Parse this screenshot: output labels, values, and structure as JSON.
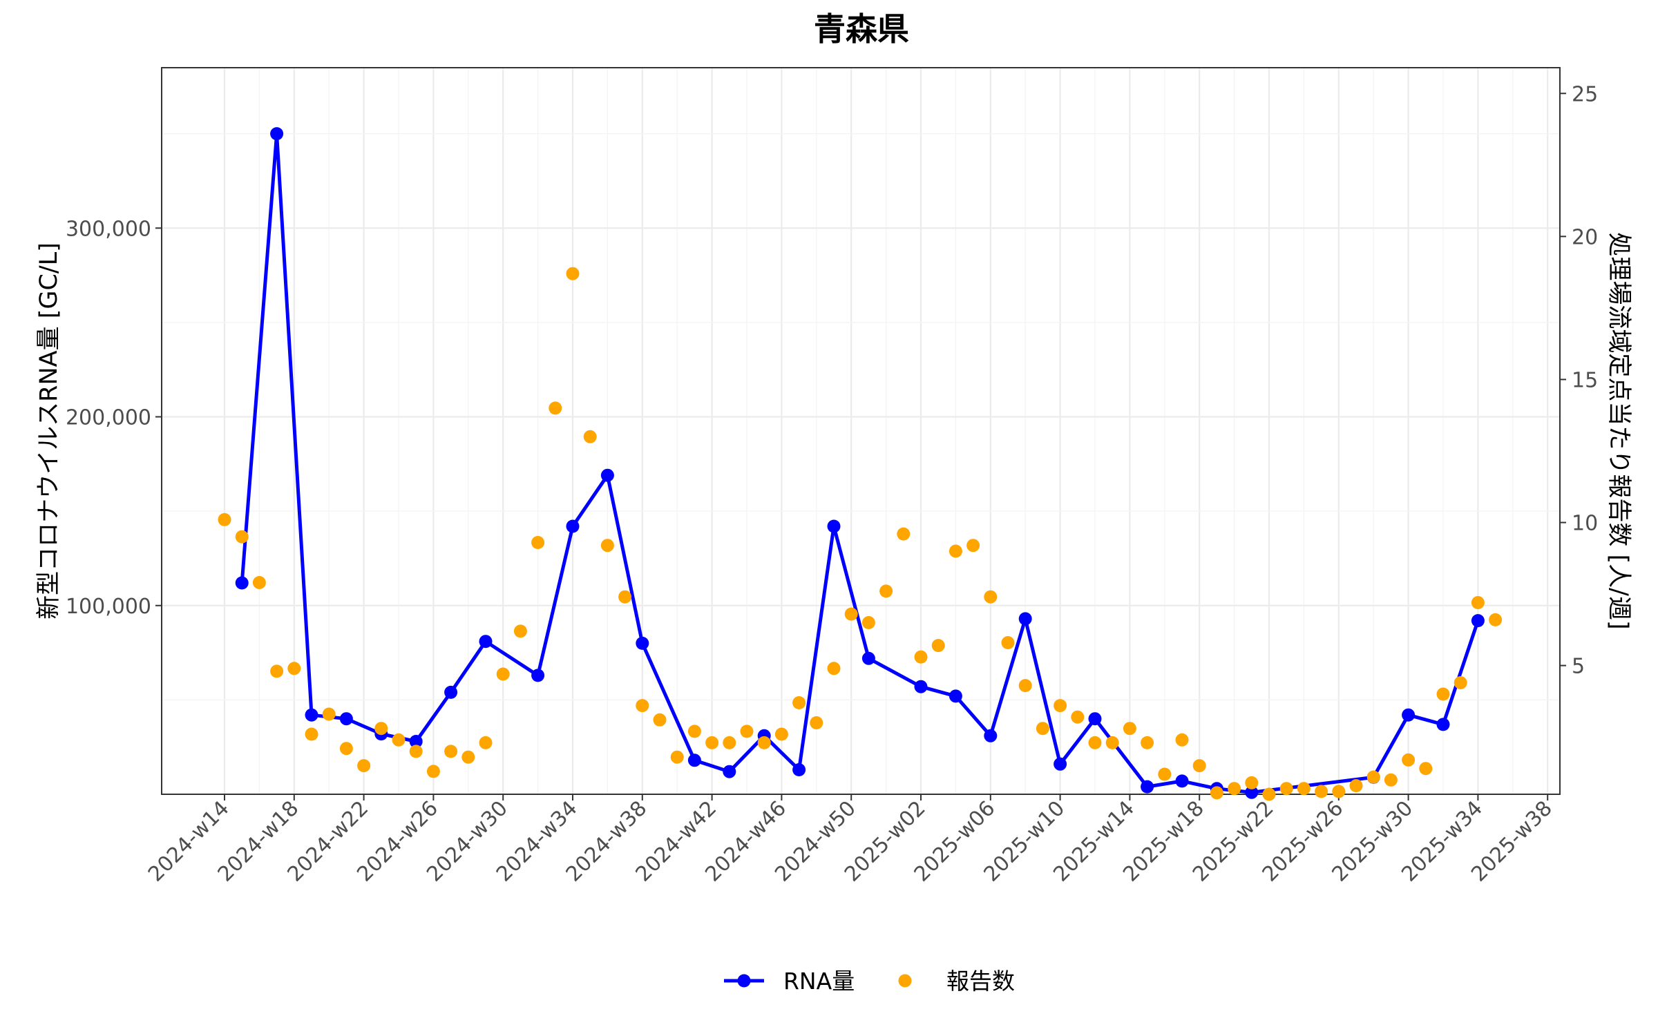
{
  "chart_data": {
    "type": "line",
    "title": "青森県",
    "xlabel": "",
    "ylabel": "新型コロナウイルスRNA量 [GC/L]",
    "y2label": "処理場流域定点当たり報告数 [人/週]",
    "x_tick_labels": [
      "2024-w14",
      "2024-w18",
      "2024-w22",
      "2024-w26",
      "2024-w30",
      "2024-w34",
      "2024-w38",
      "2024-w42",
      "2024-w46",
      "2024-w50",
      "2025-w02",
      "2025-w06",
      "2025-w10",
      "2025-w14",
      "2025-w18",
      "2025-w22",
      "2025-w26",
      "2025-w30",
      "2025-w34",
      "2025-w38"
    ],
    "y_ticks": [
      100000,
      200000,
      300000
    ],
    "y_tick_labels": [
      "100,000",
      "200,000",
      "300,000"
    ],
    "y2_ticks": [
      5,
      10,
      15,
      20,
      25
    ],
    "y2_tick_labels": [
      "5",
      "10",
      "15",
      "20",
      "25"
    ],
    "ylim": [
      0,
      385000
    ],
    "y2lim": [
      0.5,
      25.9
    ],
    "grid": true,
    "legend_position": "bottom",
    "series": [
      {
        "name": "RNA量",
        "axis": "left",
        "style": "line+points",
        "color": "#0000ff",
        "points": [
          [
            "2024-w15",
            112000
          ],
          [
            "2024-w17",
            350000
          ],
          [
            "2024-w19",
            42000
          ],
          [
            "2024-w21",
            40000
          ],
          [
            "2024-w23",
            32000
          ],
          [
            "2024-w25",
            28000
          ],
          [
            "2024-w27",
            54000
          ],
          [
            "2024-w29",
            81000
          ],
          [
            "2024-w32",
            63000
          ],
          [
            "2024-w34",
            142000
          ],
          [
            "2024-w36",
            169000
          ],
          [
            "2024-w38",
            80000
          ],
          [
            "2024-w41",
            18000
          ],
          [
            "2024-w43",
            12000
          ],
          [
            "2024-w45",
            31000
          ],
          [
            "2024-w47",
            13000
          ],
          [
            "2024-w49",
            142000
          ],
          [
            "2024-w51",
            72000
          ],
          [
            "2025-w02",
            57000
          ],
          [
            "2025-w04",
            52000
          ],
          [
            "2025-w06",
            31000
          ],
          [
            "2025-w08",
            93000
          ],
          [
            "2025-w10",
            16000
          ],
          [
            "2025-w12",
            40000
          ],
          [
            "2025-w15",
            4000
          ],
          [
            "2025-w17",
            7000
          ],
          [
            "2025-w19",
            3000
          ],
          [
            "2025-w21",
            1000
          ],
          [
            "2025-w28",
            9000
          ],
          [
            "2025-w30",
            42000
          ],
          [
            "2025-w32",
            37000
          ],
          [
            "2025-w34",
            92000
          ]
        ]
      },
      {
        "name": "報告数",
        "axis": "right",
        "style": "points",
        "color": "#ffa500",
        "points": [
          [
            "2024-w14",
            10.1
          ],
          [
            "2024-w15",
            9.5
          ],
          [
            "2024-w16",
            7.9
          ],
          [
            "2024-w17",
            4.8
          ],
          [
            "2024-w18",
            4.9
          ],
          [
            "2024-w19",
            2.6
          ],
          [
            "2024-w20",
            3.3
          ],
          [
            "2024-w21",
            2.1
          ],
          [
            "2024-w22",
            1.5
          ],
          [
            "2024-w23",
            2.8
          ],
          [
            "2024-w24",
            2.4
          ],
          [
            "2024-w25",
            2.0
          ],
          [
            "2024-w26",
            1.3
          ],
          [
            "2024-w27",
            2.0
          ],
          [
            "2024-w28",
            1.8
          ],
          [
            "2024-w29",
            2.3
          ],
          [
            "2024-w30",
            4.7
          ],
          [
            "2024-w31",
            6.2
          ],
          [
            "2024-w32",
            9.3
          ],
          [
            "2024-w33",
            14.0
          ],
          [
            "2024-w34",
            18.7
          ],
          [
            "2024-w35",
            13.0
          ],
          [
            "2024-w36",
            9.2
          ],
          [
            "2024-w37",
            7.4
          ],
          [
            "2024-w38",
            3.6
          ],
          [
            "2024-w39",
            3.1
          ],
          [
            "2024-w40",
            1.8
          ],
          [
            "2024-w41",
            2.7
          ],
          [
            "2024-w42",
            2.3
          ],
          [
            "2024-w43",
            2.3
          ],
          [
            "2024-w44",
            2.7
          ],
          [
            "2024-w45",
            2.3
          ],
          [
            "2024-w46",
            2.6
          ],
          [
            "2024-w47",
            3.7
          ],
          [
            "2024-w48",
            3.0
          ],
          [
            "2024-w49",
            4.9
          ],
          [
            "2024-w50",
            6.8
          ],
          [
            "2024-w51",
            6.5
          ],
          [
            "2024-w52",
            7.6
          ],
          [
            "2025-w01",
            9.6
          ],
          [
            "2025-w02",
            5.3
          ],
          [
            "2025-w03",
            5.7
          ],
          [
            "2025-w04",
            9.0
          ],
          [
            "2025-w05",
            9.2
          ],
          [
            "2025-w06",
            7.4
          ],
          [
            "2025-w07",
            5.8
          ],
          [
            "2025-w08",
            4.3
          ],
          [
            "2025-w09",
            2.8
          ],
          [
            "2025-w10",
            3.6
          ],
          [
            "2025-w11",
            3.2
          ],
          [
            "2025-w12",
            2.3
          ],
          [
            "2025-w13",
            2.3
          ],
          [
            "2025-w14",
            2.8
          ],
          [
            "2025-w15",
            2.3
          ],
          [
            "2025-w16",
            1.2
          ],
          [
            "2025-w17",
            2.4
          ],
          [
            "2025-w18",
            1.5
          ],
          [
            "2025-w19",
            0.55
          ],
          [
            "2025-w20",
            0.7
          ],
          [
            "2025-w21",
            0.9
          ],
          [
            "2025-w22",
            0.5
          ],
          [
            "2025-w23",
            0.7
          ],
          [
            "2025-w24",
            0.7
          ],
          [
            "2025-w25",
            0.6
          ],
          [
            "2025-w26",
            0.6
          ],
          [
            "2025-w27",
            0.8
          ],
          [
            "2025-w28",
            1.1
          ],
          [
            "2025-w29",
            1.0
          ],
          [
            "2025-w30",
            1.7
          ],
          [
            "2025-w31",
            1.4
          ],
          [
            "2025-w32",
            4.0
          ],
          [
            "2025-w33",
            4.4
          ],
          [
            "2025-w34",
            7.2
          ],
          [
            "2025-w35",
            6.6
          ]
        ]
      }
    ]
  }
}
